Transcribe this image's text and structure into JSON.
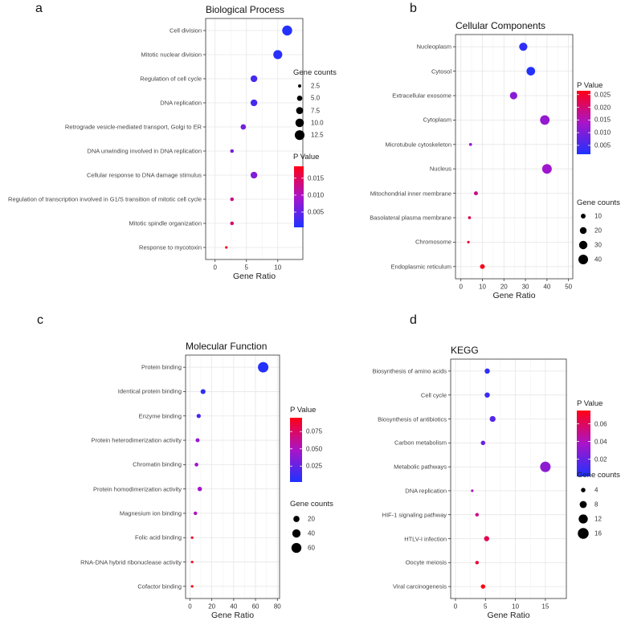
{
  "chart_data": [
    {
      "panel": "a",
      "type": "scatter",
      "title": "Biological Process",
      "xlabel": "Gene Ratio",
      "xlim": [
        -1.5,
        14
      ],
      "xticks": [
        0,
        5,
        10
      ],
      "size_legend": {
        "title": "Gene counts",
        "values": [
          "2.5",
          "5.0",
          "7.5",
          "10.0",
          "12.5"
        ]
      },
      "color_legend": {
        "title": "P Value",
        "ticks": [
          "0.015",
          "0.010",
          "0.005"
        ],
        "tick_values": [
          0.015,
          0.01,
          0.005
        ],
        "range": [
          0.0005,
          0.0185
        ]
      },
      "categories": [
        "Cell division",
        "Mitotic nuclear division",
        "Regulation of cell cycle",
        "DNA replication",
        "Retrograde vesicle-mediated transport, Golgi to ER",
        "DNA unwinding involved in DNA replication",
        "Cellular response to DNA damage stimulus",
        "Regulation of transcription involved in G1/S transition of mitotic cell cycle",
        "Mitotic spindle organization",
        "Response to mycotoxin"
      ],
      "x": [
        11.5,
        10,
        6.2,
        6.2,
        4.5,
        2.7,
        6.2,
        2.7,
        2.7,
        1.8
      ],
      "gene_counts": [
        13,
        11,
        7,
        7,
        5,
        3,
        7,
        3,
        3,
        2
      ],
      "p_value": [
        0.0008,
        0.0012,
        0.003,
        0.003,
        0.006,
        0.006,
        0.007,
        0.013,
        0.014,
        0.018
      ]
    },
    {
      "panel": "b",
      "type": "scatter",
      "title": "Cellular Components",
      "xlabel": "Gene Ratio",
      "xlim": [
        -2.5,
        52
      ],
      "xticks": [
        0,
        10,
        20,
        30,
        40,
        50
      ],
      "size_legend": {
        "title": "Gene counts",
        "values": [
          "10",
          "20",
          "30",
          "40"
        ]
      },
      "color_legend": {
        "title": "P Value",
        "ticks": [
          "0.025",
          "0.020",
          "0.015",
          "0.010",
          "0.005"
        ],
        "tick_values": [
          0.025,
          0.02,
          0.015,
          0.01,
          0.005
        ],
        "range": [
          0.0015,
          0.0265
        ]
      },
      "categories": [
        "Nucleoplasm",
        "Cytosol",
        "Extracellular exosome",
        "Cytoplasm",
        "Microtubule cytoskeleton",
        "Nucleus",
        "Mitochondrial inner membrane",
        "Basolateral plasma membrane",
        "Chromosome",
        "Endoplasmic reticulum"
      ],
      "x": [
        29,
        32.5,
        24.5,
        39,
        4.5,
        40,
        7,
        4,
        3.5,
        10
      ],
      "gene_counts": [
        29,
        32,
        24,
        39,
        4,
        40,
        7,
        4,
        3,
        10
      ],
      "p_value": [
        0.003,
        0.002,
        0.011,
        0.012,
        0.012,
        0.013,
        0.019,
        0.022,
        0.024,
        0.026
      ]
    },
    {
      "panel": "c",
      "type": "scatter",
      "title": "Molecular Function",
      "xlabel": "Gene Ratio",
      "xlim": [
        -4,
        82
      ],
      "xticks": [
        0,
        20,
        40,
        60,
        80
      ],
      "size_legend": {
        "title": "Gene counts",
        "values": [
          "20",
          "40",
          "60"
        ]
      },
      "color_legend": {
        "title": "P Value",
        "ticks": [
          "0.075",
          "0.050",
          "0.025"
        ],
        "tick_values": [
          0.075,
          0.05,
          0.025
        ],
        "range": [
          0.002,
          0.095
        ]
      },
      "categories": [
        "Protein binding",
        "Identical protein binding",
        "Enzyme binding",
        "Protein heterodimerization activity",
        "Chromatin binding",
        "Protein homodimerization activity",
        "Magnesium ion binding",
        "Folic acid binding",
        "RNA-DNA hybrid ribonuclease activity",
        "Cofactor binding"
      ],
      "x": [
        67,
        12,
        8,
        7,
        6,
        9,
        5,
        2,
        2,
        2
      ],
      "gene_counts": [
        67,
        12,
        8,
        7,
        6,
        9,
        5,
        2,
        2,
        2
      ],
      "p_value": [
        0.004,
        0.007,
        0.015,
        0.042,
        0.045,
        0.047,
        0.052,
        0.09,
        0.092,
        0.095
      ]
    },
    {
      "panel": "d",
      "type": "scatter",
      "title": "KEGG",
      "xlabel": "Gene Ratio",
      "xlim": [
        -0.8,
        18.5
      ],
      "xticks": [
        0,
        5,
        10,
        15
      ],
      "size_legend": {
        "title": "Gene counts",
        "values": [
          "4",
          "8",
          "12",
          "16"
        ]
      },
      "color_legend": {
        "title": "P Value",
        "ticks": [
          "0.06",
          "0.04",
          "0.02"
        ],
        "tick_values": [
          0.06,
          0.04,
          0.02
        ],
        "range": [
          0.0005,
          0.075
        ]
      },
      "categories": [
        "Biosynthesis of amino acids",
        "Cell cycle",
        "Biosynthesis of antibiotics",
        "Carbon metabolism",
        "Metabolic pathways",
        "DNA replication",
        "HIF-1 signaling pathway",
        "HTLV-I infection",
        "Oocyte meiosis",
        "Viral carcinogenesis"
      ],
      "x": [
        5.3,
        5.3,
        6.2,
        4.6,
        15,
        2.8,
        3.6,
        5.2,
        3.6,
        4.6
      ],
      "gene_counts": [
        5,
        5,
        6,
        4,
        15,
        2,
        3,
        5,
        3,
        4
      ],
      "p_value": [
        0.005,
        0.008,
        0.015,
        0.02,
        0.03,
        0.04,
        0.05,
        0.062,
        0.068,
        0.075
      ]
    }
  ]
}
